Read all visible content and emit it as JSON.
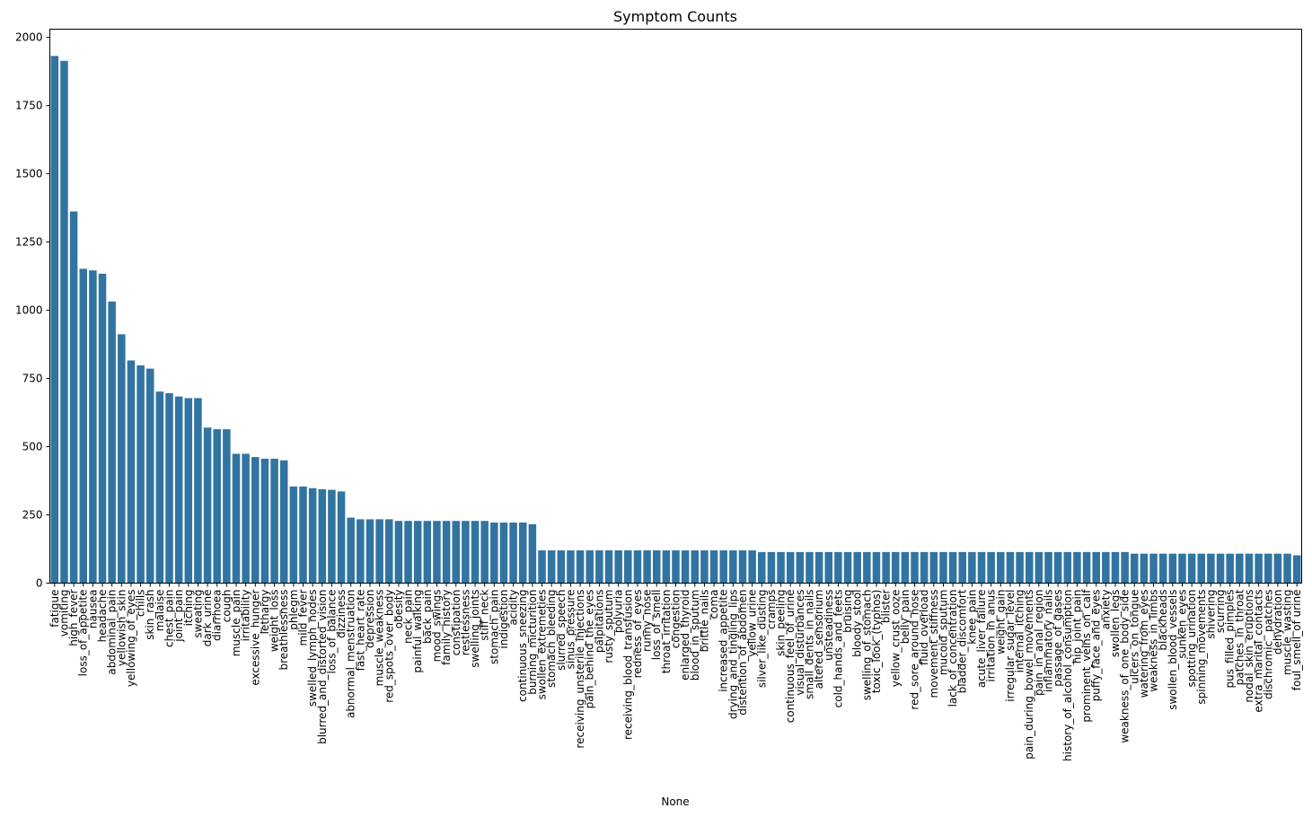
{
  "chart_data": {
    "type": "bar",
    "title": "Symptom Counts",
    "xlabel": "None",
    "ylabel": "",
    "ylim": [
      0,
      2030
    ],
    "yticks": [
      0,
      250,
      500,
      750,
      1000,
      1250,
      1500,
      1750,
      2000
    ],
    "grid": false,
    "bar_color": "#3274a1",
    "categories": [
      "fatigue",
      "vomiting",
      "high_fever",
      "loss_of_appetite",
      "nausea",
      "headache",
      "abdominal_pain",
      "yellowish_skin",
      "yellowing_of_eyes",
      "chills",
      "skin_rash",
      "malaise",
      "chest_pain",
      "joint_pain",
      "itching",
      "sweating",
      "dark_urine",
      "diarrhoea",
      "cough",
      "muscle_pain",
      "irritability",
      "excessive_hunger",
      "lethargy",
      "weight_loss",
      "breathlessness",
      "phlegm",
      "mild_fever",
      "swelled_lymph_nodes",
      "blurred_and_distorted_vision",
      "loss_of_balance",
      "dizziness",
      "abnormal_menstruation",
      "fast_heart_rate",
      "depression",
      "muscle_weakness",
      "red_spots_over_body",
      "obesity",
      "neck_pain",
      "painful_walking",
      "back_pain",
      "mood_swings",
      "family_history",
      "constipation",
      "restlessness",
      "swelling_joints",
      "stiff_neck",
      "stomach_pain",
      "indigestion",
      "acidity",
      "continuous_sneezing",
      "burning_micturition",
      "swollen_extremeties",
      "stomach_bleeding",
      "slurred_speech",
      "sinus_pressure",
      "receiving_unsterile_injections",
      "pain_behind_the_eyes",
      "palpitations",
      "rusty_sputum",
      "polyuria",
      "receiving_blood_transfusion",
      "redness_of_eyes",
      "runny_nose",
      "loss_of_smell",
      "throat_irritation",
      "congestion",
      "enlarged_thyroid",
      "blood_in_sputum",
      "brittle_nails",
      "coma",
      "increased_appetite",
      "drying_and_tingling_lips",
      "distention_of_abdomen",
      "yellow_urine",
      "silver_like_dusting",
      "cramps",
      "skin_peeling",
      "continuous_feel_of_urine",
      "visual_disturbances",
      "small_dents_in_nails",
      "altered_sensorium",
      "unsteadiness",
      "cold_hands_and_feets",
      "bruising",
      "bloody_stool",
      "swelling_of_stomach",
      "toxic_look_(typhos)",
      "blister",
      "yellow_crust_ooze",
      "belly_pain",
      "red_sore_around_nose",
      "fluid_overload",
      "movement_stiffness",
      "mucoid_sputum",
      "lack_of_concentration",
      "bladder_discomfort",
      "knee_pain",
      "acute_liver_failure",
      "irritation_in_anus",
      "weight_gain",
      "irregular_sugar_level",
      "internal_itching",
      "pain_during_bowel_movements",
      "pain_in_anal_region",
      "inflammatory_nails",
      "passage_of_gases",
      "history_of_alcohol_consumption",
      "hip_joint_pain",
      "prominent_veins_on_calf",
      "puffy_face_and_eyes",
      "anxiety",
      "swollen_legs",
      "weakness_of_one_body_side",
      "ulcers_on_tongue",
      "watering_from_eyes",
      "weakness_in_limbs",
      "blackheads",
      "swollen_blood_vessels",
      "sunken_eyes",
      "spotting_urination",
      "spinning_movements",
      "shivering",
      "scurring",
      "pus_filled_pimples",
      "patches_in_throat",
      "nodal_skin_eruptions",
      "extra_marital_contacts",
      "dischromic _patches",
      "dehydration",
      "muscle_wasting",
      "foul_smell_of urine"
    ],
    "values": [
      1932,
      1914,
      1362,
      1152,
      1146,
      1134,
      1032,
      912,
      816,
      798,
      786,
      702,
      696,
      684,
      678,
      678,
      570,
      564,
      564,
      474,
      474,
      462,
      456,
      456,
      450,
      354,
      354,
      348,
      344,
      342,
      336,
      240,
      234,
      234,
      234,
      234,
      228,
      228,
      228,
      228,
      228,
      228,
      228,
      228,
      228,
      228,
      222,
      222,
      222,
      222,
      216,
      120,
      120,
      120,
      120,
      120,
      120,
      120,
      120,
      120,
      120,
      120,
      120,
      120,
      120,
      120,
      120,
      120,
      120,
      120,
      120,
      120,
      120,
      120,
      114,
      114,
      114,
      114,
      114,
      114,
      114,
      114,
      114,
      114,
      114,
      114,
      114,
      114,
      114,
      114,
      114,
      114,
      114,
      114,
      114,
      114,
      114,
      114,
      114,
      114,
      114,
      114,
      114,
      114,
      114,
      114,
      114,
      114,
      114,
      114,
      114,
      114,
      114,
      108,
      108,
      108,
      108,
      108,
      108,
      108,
      108,
      108,
      108,
      108,
      108,
      108,
      108,
      108,
      108,
      108,
      102
    ]
  }
}
